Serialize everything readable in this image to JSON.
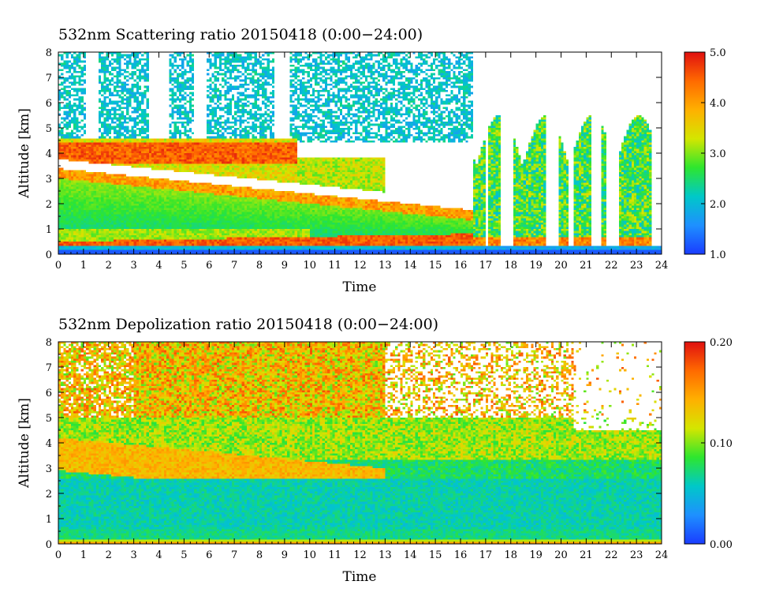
{
  "chart_data": [
    {
      "type": "heatmap",
      "title": "532nm Scattering ratio  20150418 (0:00−24:00)",
      "xlabel": "Time",
      "ylabel": "Altitude [km]",
      "xlim": [
        0,
        24
      ],
      "ylim": [
        0,
        8
      ],
      "xticks": [
        "0",
        "1",
        "2",
        "3",
        "4",
        "5",
        "6",
        "7",
        "8",
        "9",
        "10",
        "11",
        "12",
        "13",
        "14",
        "15",
        "16",
        "17",
        "18",
        "19",
        "20",
        "21",
        "22",
        "23",
        "24"
      ],
      "yticks": [
        "0",
        "1",
        "2",
        "3",
        "4",
        "5",
        "6",
        "7",
        "8"
      ],
      "colorbar": {
        "min": 1.0,
        "max": 5.0,
        "tick_labels": [
          "1.0",
          "2.0",
          "3.0",
          "4.0",
          "5.0"
        ]
      },
      "colormap": [
        "#1a3cff",
        "#1e90ff",
        "#00c8c8",
        "#2ee62e",
        "#d4e600",
        "#ffb000",
        "#ff6a00",
        "#e01010"
      ],
      "features": [
        {
          "kind": "aerosol_layer",
          "time_range": [
            0,
            15
          ],
          "top_km": [
            3.4,
            2.0
          ],
          "value_range": [
            2.0,
            3.0
          ]
        },
        {
          "kind": "boundary_layer",
          "time_range": [
            0,
            16
          ],
          "altitude_km": [
            0.3,
            1.0
          ],
          "value_range": [
            3.5,
            4.8
          ]
        },
        {
          "kind": "elevated_layer",
          "time_range": [
            0,
            9.5
          ],
          "altitude_km": [
            3.6,
            4.4
          ],
          "value_range": [
            4.0,
            5.0
          ]
        },
        {
          "kind": "cloud",
          "time_range": [
            17,
            23.8
          ],
          "altitude_km": [
            0.3,
            5.5
          ],
          "value_range": [
            1.5,
            5.0
          ]
        }
      ]
    },
    {
      "type": "heatmap",
      "title": "532nm Depolization ratio  20150418 (0:00−24:00)",
      "xlabel": "Time",
      "ylabel": "Altitude [km]",
      "xlim": [
        0,
        24
      ],
      "ylim": [
        0,
        8
      ],
      "xticks": [
        "0",
        "1",
        "2",
        "3",
        "4",
        "5",
        "6",
        "7",
        "8",
        "9",
        "10",
        "11",
        "12",
        "13",
        "14",
        "15",
        "16",
        "17",
        "18",
        "19",
        "20",
        "21",
        "22",
        "23",
        "24"
      ],
      "yticks": [
        "0",
        "1",
        "2",
        "3",
        "4",
        "5",
        "6",
        "7",
        "8"
      ],
      "colorbar": {
        "min": 0.0,
        "max": 0.2,
        "tick_labels": [
          "0.00",
          "0.10",
          "0.20"
        ]
      },
      "colormap": [
        "#1a3cff",
        "#1e90ff",
        "#00c8c8",
        "#2ee62e",
        "#d4e600",
        "#ffb000",
        "#ff6a00",
        "#e01010"
      ],
      "features": [
        {
          "kind": "dust_layer",
          "time_range": [
            0,
            13
          ],
          "altitude_km": [
            2.8,
            4.2
          ],
          "value_range": [
            0.12,
            0.16
          ]
        },
        {
          "kind": "boundary_layer",
          "time_range": [
            0,
            24
          ],
          "altitude_km": [
            0.2,
            2.8
          ],
          "value_range": [
            0.03,
            0.07
          ]
        },
        {
          "kind": "upper_noise",
          "time_range": [
            3,
            20
          ],
          "altitude_km": [
            5,
            8
          ],
          "value_range": [
            0.1,
            0.2
          ]
        }
      ]
    }
  ]
}
